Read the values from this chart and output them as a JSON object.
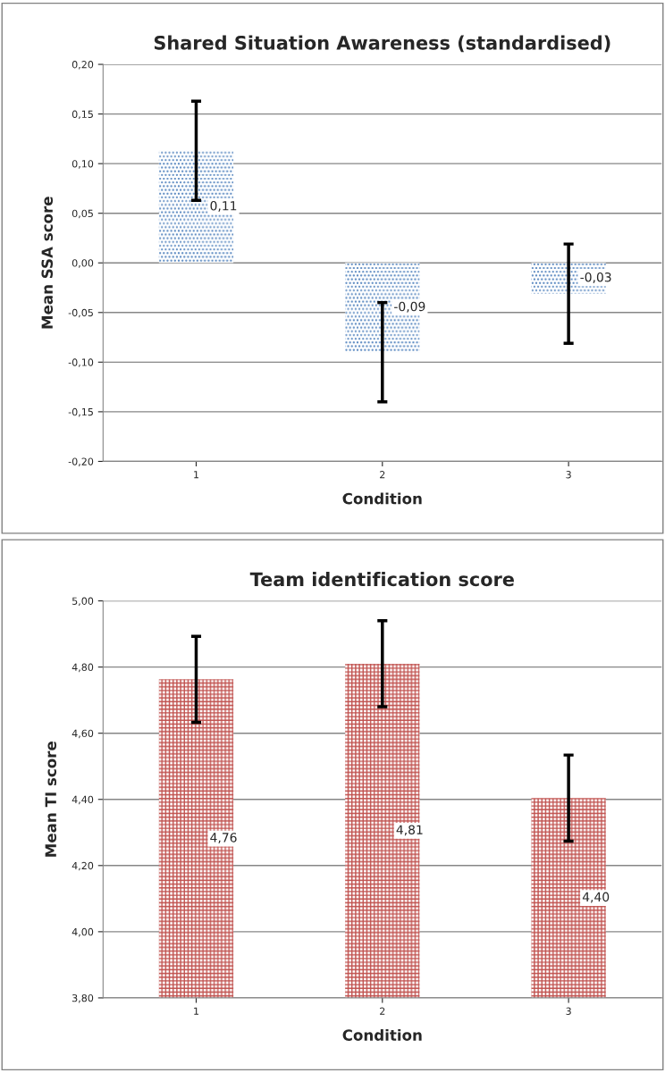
{
  "chart_data": [
    {
      "type": "bar",
      "title": "Shared Situation Awareness (standardised)",
      "xlabel": "Condition",
      "ylabel": "Mean SSA score",
      "categories": [
        "1",
        "2",
        "3"
      ],
      "series": [
        {
          "color": "#4f81bd",
          "values": [
            0.113,
            -0.09,
            -0.031
          ],
          "errors": [
            0.05,
            0.05,
            0.05
          ],
          "value_labels": [
            "0,11",
            "-0,09",
            "-0,03"
          ]
        }
      ],
      "ylim": [
        -0.2,
        0.2
      ],
      "yticks": [
        {
          "value": -0.2,
          "label": "-0,20"
        },
        {
          "value": -0.15,
          "label": "-0,15"
        },
        {
          "value": -0.1,
          "label": "-0,10"
        },
        {
          "value": -0.05,
          "label": "-0,05"
        },
        {
          "value": 0,
          "label": "0,00"
        },
        {
          "value": 0.05,
          "label": "0,05"
        },
        {
          "value": 0.1,
          "label": "0,10"
        },
        {
          "value": 0.15,
          "label": "0,15"
        },
        {
          "value": 0.2,
          "label": "0,20"
        }
      ],
      "grid": "y",
      "legend": false
    },
    {
      "type": "bar",
      "title": "Team identification score",
      "xlabel": "Condition",
      "ylabel": "Mean TI score",
      "categories": [
        "1",
        "2",
        "3"
      ],
      "series": [
        {
          "color": "#c0504d",
          "values": [
            4.763,
            4.81,
            4.404
          ],
          "errors": [
            0.13,
            0.13,
            0.13
          ],
          "value_labels": [
            "4,76",
            "4,81",
            "4,40"
          ]
        }
      ],
      "ylim": [
        3.8,
        5.0
      ],
      "yticks": [
        {
          "value": 3.8,
          "label": "3,80"
        },
        {
          "value": 4.0,
          "label": "4,00"
        },
        {
          "value": 4.2,
          "label": "4,20"
        },
        {
          "value": 4.4,
          "label": "4,40"
        },
        {
          "value": 4.6,
          "label": "4,60"
        },
        {
          "value": 4.8,
          "label": "4,80"
        },
        {
          "value": 5.0,
          "label": "5,00"
        }
      ],
      "grid": "y",
      "legend": false
    }
  ]
}
